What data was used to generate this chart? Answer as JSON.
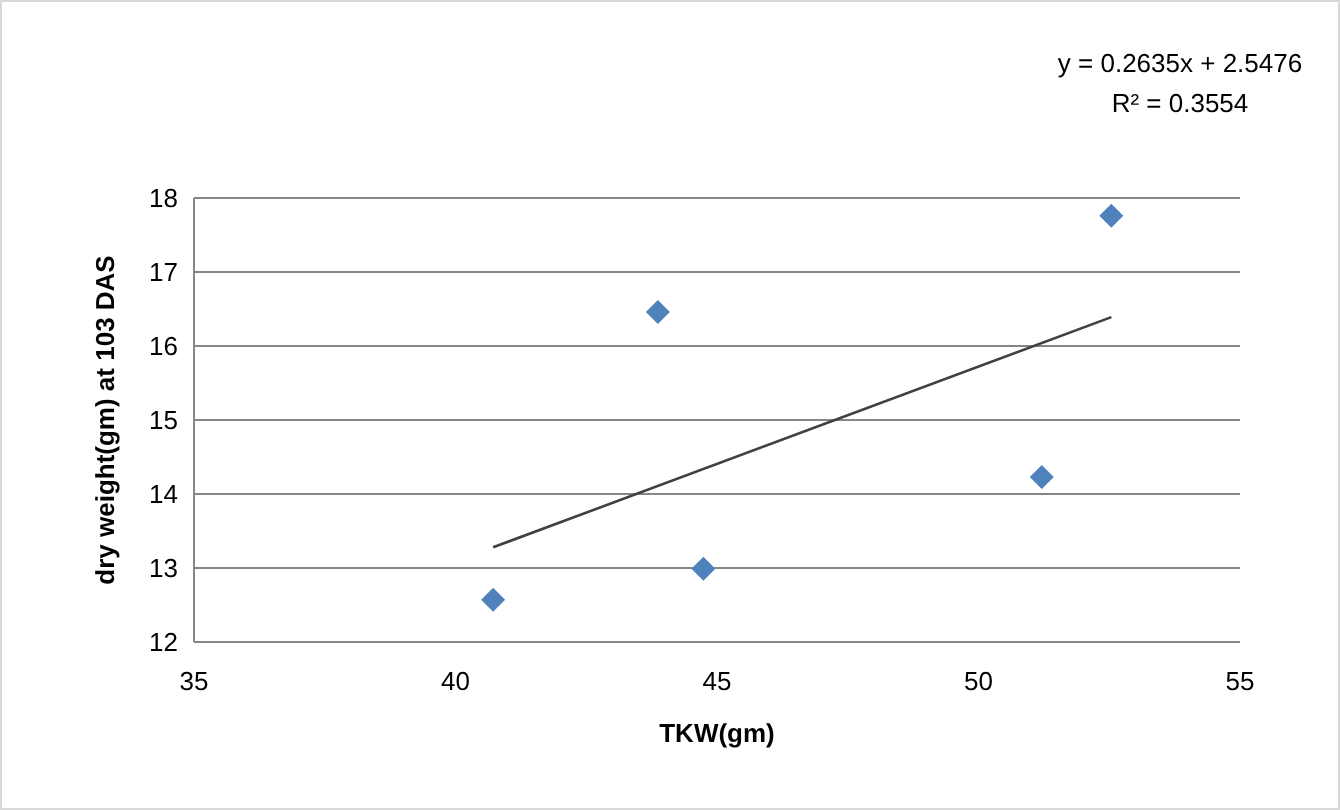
{
  "chart_data": {
    "type": "scatter",
    "xlabel": "TKW(gm)",
    "ylabel": "dry weight(gm) at  103 DAS",
    "xlim": [
      35,
      55
    ],
    "xticks": [
      35,
      40,
      45,
      50,
      55
    ],
    "ylim": [
      12,
      18
    ],
    "yticks": [
      12,
      13,
      14,
      15,
      16,
      17,
      18
    ],
    "grid": "y",
    "marker": "diamond",
    "series": [
      {
        "color": "#4f81bd",
        "x": [
          40.72,
          43.87,
          44.74,
          51.21,
          52.54
        ],
        "values": [
          12.57,
          16.46,
          12.99,
          14.23,
          17.76
        ]
      },
      {
        "type": "line",
        "color": "#404040",
        "marker": "none",
        "line_style": "solid",
        "x": [
          40.72,
          52.54
        ],
        "values": [
          13.28,
          16.39
        ]
      }
    ],
    "annotations": [
      "y = 0.2635x + 2.5476",
      "R² = 0.3554"
    ]
  }
}
